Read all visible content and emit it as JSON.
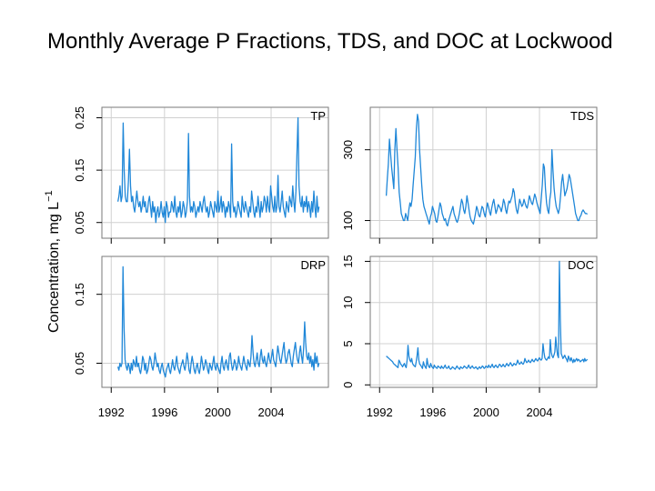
{
  "title": "Monthly Average P Fractions, TDS, and DOC at Lockwood",
  "y_axis_label": "Concentration, mg L",
  "y_axis_label_exponent": "−1",
  "colors": {
    "series": "#1f87d8",
    "grid": "#d0d0d0",
    "panel_bg": "#ffffff",
    "frame": "#7a7a7a"
  },
  "chart_data": [
    {
      "id": "tp",
      "type": "line",
      "label": "TP",
      "ylim": [
        0.02,
        0.27
      ],
      "yticks": [
        0.05,
        0.15,
        0.25
      ],
      "ytick_labels": [
        "0.05",
        "0.15",
        "0.25"
      ],
      "xlim": [
        1991.3,
        2008.3
      ],
      "xticks": [
        1992,
        1996,
        2000,
        2004
      ],
      "xtick_labels": [],
      "start_year": 1992.5,
      "end_year": 2007.6,
      "values": [
        0.09,
        0.1,
        0.12,
        0.09,
        0.1,
        0.24,
        0.15,
        0.1,
        0.09,
        0.09,
        0.13,
        0.19,
        0.12,
        0.09,
        0.1,
        0.08,
        0.07,
        0.09,
        0.11,
        0.09,
        0.08,
        0.09,
        0.07,
        0.08,
        0.1,
        0.08,
        0.09,
        0.07,
        0.07,
        0.09,
        0.1,
        0.08,
        0.06,
        0.09,
        0.07,
        0.08,
        0.05,
        0.07,
        0.08,
        0.06,
        0.07,
        0.09,
        0.07,
        0.06,
        0.08,
        0.05,
        0.09,
        0.08,
        0.06,
        0.07,
        0.07,
        0.09,
        0.08,
        0.07,
        0.1,
        0.07,
        0.06,
        0.08,
        0.07,
        0.09,
        0.06,
        0.07,
        0.09,
        0.08,
        0.06,
        0.07,
        0.09,
        0.22,
        0.1,
        0.07,
        0.08,
        0.07,
        0.09,
        0.08,
        0.06,
        0.07,
        0.08,
        0.07,
        0.09,
        0.08,
        0.07,
        0.09,
        0.1,
        0.08,
        0.07,
        0.08,
        0.06,
        0.07,
        0.09,
        0.08,
        0.07,
        0.06,
        0.09,
        0.08,
        0.07,
        0.11,
        0.07,
        0.08,
        0.1,
        0.07,
        0.09,
        0.08,
        0.06,
        0.08,
        0.07,
        0.09,
        0.08,
        0.06,
        0.2,
        0.09,
        0.07,
        0.08,
        0.06,
        0.07,
        0.09,
        0.08,
        0.07,
        0.06,
        0.1,
        0.08,
        0.07,
        0.09,
        0.08,
        0.07,
        0.06,
        0.08,
        0.07,
        0.11,
        0.09,
        0.07,
        0.06,
        0.08,
        0.07,
        0.1,
        0.08,
        0.06,
        0.09,
        0.07,
        0.08,
        0.1,
        0.09,
        0.07,
        0.1,
        0.08,
        0.07,
        0.12,
        0.1,
        0.08,
        0.07,
        0.1,
        0.07,
        0.08,
        0.14,
        0.08,
        0.07,
        0.09,
        0.11,
        0.08,
        0.07,
        0.06,
        0.09,
        0.08,
        0.07,
        0.1,
        0.09,
        0.08,
        0.12,
        0.09,
        0.07,
        0.11,
        0.18,
        0.25,
        0.12,
        0.09,
        0.08,
        0.1,
        0.07,
        0.09,
        0.08,
        0.1,
        0.07,
        0.09,
        0.08,
        0.06,
        0.09,
        0.07,
        0.11,
        0.08,
        0.06,
        0.1,
        0.07,
        0.08
      ]
    },
    {
      "id": "tds",
      "type": "line",
      "label": "TDS",
      "ylim": [
        50,
        420
      ],
      "yticks": [
        100,
        300
      ],
      "ytick_labels": [
        "100",
        "300"
      ],
      "xlim": [
        1991.3,
        2008.3
      ],
      "xticks": [
        1992,
        1996,
        2000,
        2004
      ],
      "xtick_labels": [],
      "start_year": 1992.5,
      "end_year": 2007.6,
      "values": [
        170,
        220,
        260,
        330,
        290,
        250,
        220,
        190,
        300,
        360,
        300,
        250,
        180,
        150,
        120,
        110,
        100,
        100,
        120,
        110,
        100,
        130,
        150,
        140,
        160,
        200,
        240,
        280,
        360,
        400,
        380,
        300,
        250,
        200,
        160,
        140,
        130,
        120,
        110,
        100,
        90,
        110,
        120,
        140,
        130,
        120,
        100,
        95,
        110,
        130,
        150,
        140,
        120,
        110,
        100,
        105,
        90,
        85,
        100,
        110,
        120,
        130,
        140,
        120,
        110,
        100,
        95,
        105,
        120,
        140,
        160,
        150,
        130,
        120,
        140,
        170,
        150,
        130,
        110,
        100,
        95,
        90,
        105,
        120,
        140,
        130,
        115,
        110,
        125,
        140,
        135,
        120,
        110,
        130,
        150,
        140,
        125,
        115,
        135,
        150,
        160,
        140,
        120,
        130,
        145,
        140,
        135,
        125,
        140,
        160,
        150,
        130,
        120,
        140,
        155,
        150,
        160,
        170,
        190,
        180,
        150,
        130,
        120,
        140,
        160,
        150,
        140,
        145,
        160,
        150,
        140,
        135,
        150,
        170,
        160,
        150,
        145,
        160,
        175,
        165,
        150,
        140,
        130,
        120,
        160,
        200,
        260,
        250,
        190,
        150,
        130,
        120,
        160,
        180,
        300,
        240,
        190,
        160,
        140,
        130,
        120,
        135,
        170,
        210,
        230,
        200,
        170,
        180,
        190,
        210,
        230,
        220,
        200,
        180,
        160,
        140,
        120,
        110,
        100,
        100,
        110,
        115,
        125,
        130,
        125,
        120,
        120,
        118
      ]
    },
    {
      "id": "drp",
      "type": "line",
      "label": "DRP",
      "ylim": [
        0.015,
        0.205
      ],
      "yticks": [
        0.05,
        0.15
      ],
      "ytick_labels": [
        "0.05",
        "0.15"
      ],
      "xlim": [
        1991.3,
        2008.3
      ],
      "xticks": [
        1992,
        1996,
        2000,
        2004
      ],
      "xtick_labels": [
        "1992",
        "1996",
        "2000",
        "2004"
      ],
      "start_year": 1992.5,
      "end_year": 2007.6,
      "values": [
        0.045,
        0.04,
        0.05,
        0.045,
        0.05,
        0.19,
        0.1,
        0.055,
        0.045,
        0.04,
        0.05,
        0.045,
        0.035,
        0.05,
        0.04,
        0.055,
        0.05,
        0.045,
        0.06,
        0.045,
        0.05,
        0.04,
        0.035,
        0.045,
        0.06,
        0.055,
        0.04,
        0.05,
        0.035,
        0.04,
        0.05,
        0.06,
        0.055,
        0.045,
        0.04,
        0.05,
        0.065,
        0.055,
        0.045,
        0.05,
        0.04,
        0.035,
        0.045,
        0.05,
        0.04,
        0.035,
        0.03,
        0.04,
        0.045,
        0.05,
        0.04,
        0.035,
        0.045,
        0.055,
        0.045,
        0.04,
        0.05,
        0.06,
        0.045,
        0.04,
        0.035,
        0.045,
        0.05,
        0.055,
        0.045,
        0.04,
        0.05,
        0.065,
        0.055,
        0.04,
        0.035,
        0.05,
        0.06,
        0.05,
        0.04,
        0.035,
        0.045,
        0.05,
        0.04,
        0.035,
        0.045,
        0.06,
        0.05,
        0.04,
        0.045,
        0.055,
        0.05,
        0.04,
        0.035,
        0.05,
        0.045,
        0.04,
        0.05,
        0.06,
        0.045,
        0.04,
        0.05,
        0.045,
        0.04,
        0.035,
        0.05,
        0.06,
        0.045,
        0.04,
        0.05,
        0.055,
        0.045,
        0.04,
        0.06,
        0.065,
        0.05,
        0.04,
        0.045,
        0.055,
        0.05,
        0.04,
        0.045,
        0.06,
        0.05,
        0.045,
        0.04,
        0.05,
        0.06,
        0.05,
        0.045,
        0.04,
        0.055,
        0.05,
        0.045,
        0.06,
        0.09,
        0.065,
        0.05,
        0.045,
        0.055,
        0.065,
        0.05,
        0.045,
        0.06,
        0.07,
        0.055,
        0.05,
        0.06,
        0.05,
        0.045,
        0.055,
        0.065,
        0.055,
        0.05,
        0.06,
        0.07,
        0.055,
        0.05,
        0.045,
        0.06,
        0.075,
        0.065,
        0.055,
        0.05,
        0.06,
        0.07,
        0.08,
        0.06,
        0.05,
        0.055,
        0.065,
        0.07,
        0.06,
        0.05,
        0.045,
        0.06,
        0.07,
        0.08,
        0.065,
        0.055,
        0.05,
        0.065,
        0.075,
        0.06,
        0.05,
        0.07,
        0.11,
        0.08,
        0.06,
        0.055,
        0.065,
        0.05,
        0.06,
        0.045,
        0.055,
        0.04,
        0.065,
        0.05,
        0.06,
        0.045,
        0.05
      ]
    },
    {
      "id": "doc",
      "type": "line",
      "label": "DOC",
      "ylim": [
        -0.3,
        15.6
      ],
      "yticks": [
        0,
        5,
        10,
        15
      ],
      "ytick_labels": [
        "0",
        "5",
        "10",
        "15"
      ],
      "xlim": [
        1991.3,
        2008.3
      ],
      "xticks": [
        1992,
        1996,
        2000,
        2004
      ],
      "xtick_labels": [
        "1992",
        "1996",
        "2000",
        "2004"
      ],
      "start_year": 1992.5,
      "end_year": 2007.6,
      "values": [
        3.5,
        3.4,
        3.3,
        3.2,
        3.1,
        3,
        2.9,
        2.8,
        2.6,
        2.5,
        2.4,
        2.3,
        2.2,
        2.1,
        3,
        2.8,
        2.5,
        2.4,
        2.2,
        2.4,
        2.6,
        2.3,
        2.1,
        3,
        4.8,
        3.5,
        3,
        2.8,
        3.2,
        2.6,
        2.4,
        2.3,
        2.2,
        2.8,
        3.5,
        4.5,
        3,
        2.5,
        2.4,
        2.2,
        2,
        2.8,
        2.4,
        2.2,
        2,
        3.2,
        2.5,
        2.2,
        2.1,
        2.6,
        2.3,
        2.1,
        2,
        2.4,
        2.2,
        2.1,
        2,
        2.3,
        2.2,
        2.1,
        2,
        2.3,
        2.1,
        2,
        2.2,
        2.4,
        2.1,
        2,
        2.1,
        2.3,
        2,
        1.9,
        2,
        2.2,
        2.1,
        2,
        1.9,
        2.1,
        2.3,
        2.1,
        2,
        1.9,
        2.2,
        2.1,
        2,
        2.1,
        2.3,
        2.2,
        2.1,
        2,
        2.2,
        2.4,
        2.1,
        2,
        2.2,
        2.3,
        2.1,
        2,
        2.1,
        2.2,
        2,
        1.9,
        2.1,
        2.2,
        2,
        2.1,
        2.3,
        2.2,
        2,
        2.1,
        2.3,
        2.2,
        2.1,
        2.4,
        2.2,
        2.1,
        2.3,
        2.5,
        2.2,
        2.1,
        2.3,
        2.4,
        2.2,
        2.1,
        2.3,
        2.5,
        2.4,
        2.2,
        2.3,
        2.5,
        2.3,
        2.2,
        2.4,
        2.6,
        2.4,
        2.3,
        2.5,
        2.7,
        2.5,
        2.3,
        2.4,
        2.6,
        2.5,
        2.4,
        2.6,
        3,
        2.7,
        2.5,
        2.6,
        2.8,
        2.6,
        2.5,
        2.7,
        3.2,
        2.9,
        2.7,
        2.8,
        3,
        2.8,
        2.7,
        2.9,
        3.1,
        2.9,
        2.8,
        3,
        3.2,
        3,
        2.9,
        3.1,
        3.3,
        3.1,
        3,
        3.2,
        5,
        4,
        3.3,
        3.1,
        3,
        3.2,
        3.4,
        3.2,
        5.5,
        4,
        3.5,
        3.3,
        3.6,
        4,
        5.8,
        4.5,
        3.6,
        3.3,
        15,
        8,
        3.8,
        3.5,
        3.2,
        3.4,
        3.6,
        3.3,
        3.1,
        2.8,
        3.5,
        3.2,
        2.9,
        3.3,
        3,
        2.7,
        3.1,
        2.8,
        3,
        3.2,
        2.9,
        3.1,
        3,
        2.8,
        2.9,
        3,
        3.1,
        2.8,
        3.2,
        2.9,
        3,
        3.1
      ]
    }
  ]
}
